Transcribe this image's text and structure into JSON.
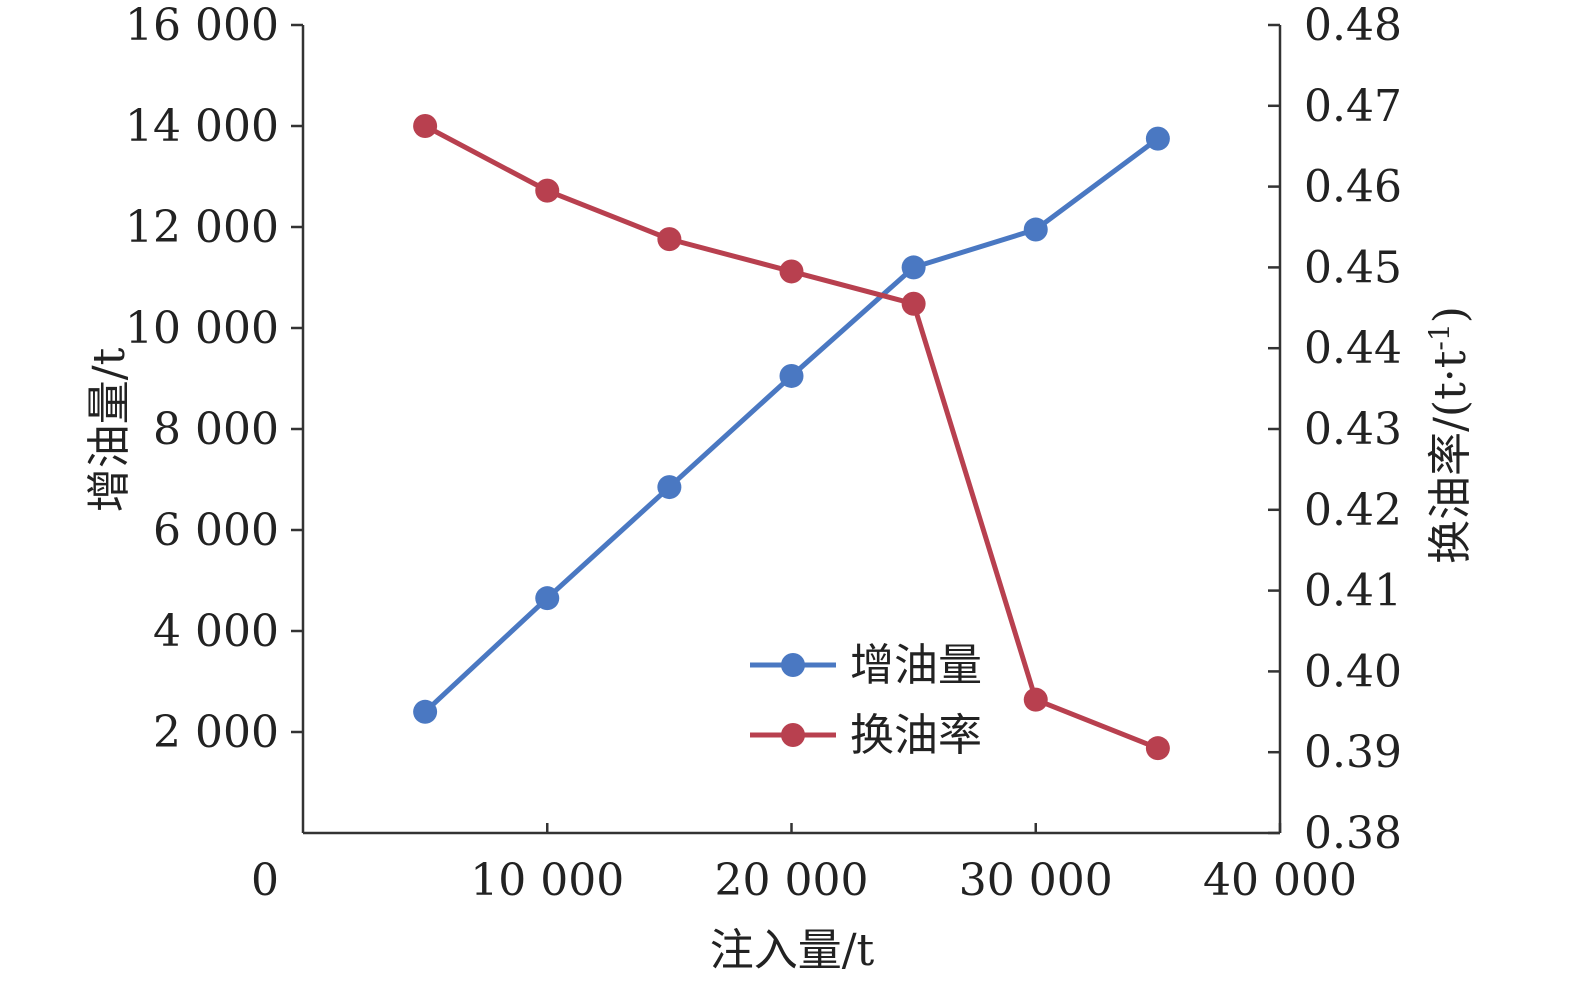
{
  "chart_data": {
    "type": "line",
    "x": [
      5000,
      10000,
      15000,
      20000,
      25000,
      30000,
      35000
    ],
    "xlim": [
      0,
      40000
    ],
    "xticks": [
      0,
      10000,
      20000,
      30000,
      40000
    ],
    "xtick_labels": [
      "0",
      "10 000",
      "20 000",
      "30 000",
      "40 000"
    ],
    "xlabel": "注入量/t",
    "y_left": {
      "label": "增油量/t",
      "lim": [
        0,
        16000
      ],
      "ticks": [
        2000,
        4000,
        6000,
        8000,
        10000,
        12000,
        14000,
        16000
      ],
      "tick_labels": [
        "2 000",
        "4 000",
        "6 000",
        "8 000",
        "10 000",
        "12 000",
        "14 000",
        "16 000"
      ]
    },
    "y_right": {
      "label": "换油率/(t·t",
      "label_sup": "-1",
      "label_close": ")",
      "lim": [
        0.38,
        0.48
      ],
      "ticks": [
        0.38,
        0.39,
        0.4,
        0.41,
        0.42,
        0.43,
        0.44,
        0.45,
        0.46,
        0.47,
        0.48
      ],
      "tick_labels": [
        "0.38",
        "0.39",
        "0.40",
        "0.41",
        "0.42",
        "0.43",
        "0.44",
        "0.45",
        "0.46",
        "0.47",
        "0.48"
      ]
    },
    "series": [
      {
        "name": "增油量",
        "axis": "left",
        "color": "#4a78c2",
        "values": [
          2400,
          4650,
          6850,
          9050,
          11200,
          11950,
          13750
        ]
      },
      {
        "name": "换油率",
        "axis": "right",
        "color": "#b8404f",
        "values": [
          0.4675,
          0.4595,
          0.4535,
          0.4495,
          0.4455,
          0.3965,
          0.3905
        ]
      }
    ],
    "legend_position": "bottom-center",
    "grid": false
  }
}
